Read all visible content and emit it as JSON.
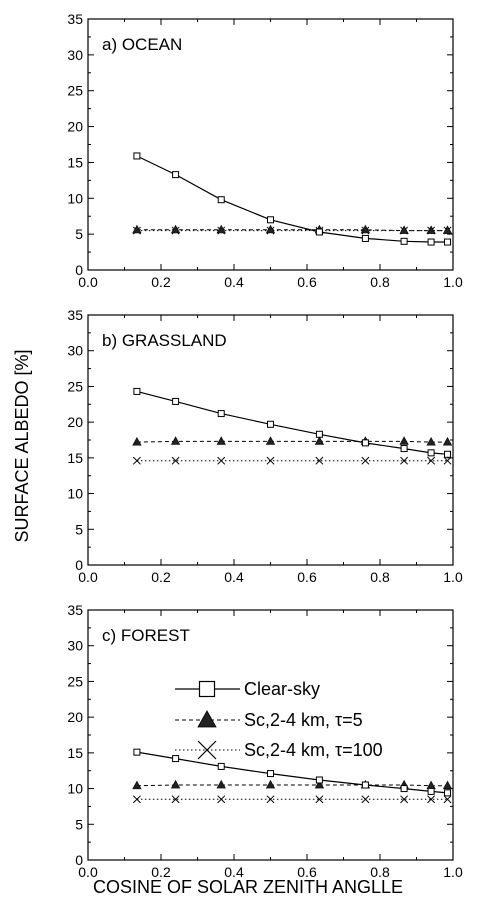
{
  "ylabel": "SURFACE ALBEDO [%]",
  "xlabel": "COSINE OF SOLAR ZENITH ANGLLE",
  "legend": [
    {
      "name": "Clear-sky",
      "marker": "open-square",
      "line": "solid"
    },
    {
      "name": "Sc,2-4 km, τ=5",
      "marker": "filled-triangle",
      "line": "dashed"
    },
    {
      "name": "Sc,2-4 km, τ=100",
      "marker": "cross",
      "line": "dotted"
    }
  ],
  "chart_data": [
    {
      "type": "line",
      "title": "a) OCEAN",
      "x": [
        0.134,
        0.24,
        0.365,
        0.5,
        0.634,
        0.76,
        0.866,
        0.94,
        0.985
      ],
      "xlim": [
        0.0,
        1.0
      ],
      "ylim": [
        0,
        35
      ],
      "xticks": [
        "0.0",
        "0.2",
        "0.4",
        "0.6",
        "0.8",
        "1.0"
      ],
      "yticks": [
        "0",
        "5",
        "10",
        "15",
        "20",
        "25",
        "30",
        "35"
      ],
      "series": [
        {
          "name": "Clear-sky",
          "values": [
            15.9,
            13.3,
            9.8,
            7.0,
            5.3,
            4.4,
            4.0,
            3.9,
            3.9
          ]
        },
        {
          "name": "Sc,2-4 km, τ=5",
          "values": [
            5.6,
            5.6,
            5.6,
            5.6,
            5.6,
            5.6,
            5.5,
            5.5,
            5.5
          ]
        },
        {
          "name": "Sc,2-4 km, τ=100",
          "values": [
            5.5,
            5.5,
            5.5,
            5.5,
            5.5,
            5.5,
            5.5,
            5.5,
            5.5
          ]
        }
      ]
    },
    {
      "type": "line",
      "title": "b) GRASSLAND",
      "x": [
        0.134,
        0.24,
        0.365,
        0.5,
        0.634,
        0.76,
        0.866,
        0.94,
        0.985
      ],
      "xlim": [
        0.0,
        1.0
      ],
      "ylim": [
        0,
        35
      ],
      "xticks": [
        "0.0",
        "0.2",
        "0.4",
        "0.6",
        "0.8",
        "1.0"
      ],
      "yticks": [
        "0",
        "5",
        "10",
        "15",
        "20",
        "25",
        "30",
        "35"
      ],
      "series": [
        {
          "name": "Clear-sky",
          "values": [
            24.3,
            22.9,
            21.2,
            19.7,
            18.3,
            17.1,
            16.3,
            15.7,
            15.5
          ]
        },
        {
          "name": "Sc,2-4 km, τ=5",
          "values": [
            17.2,
            17.3,
            17.3,
            17.3,
            17.3,
            17.3,
            17.3,
            17.2,
            17.2
          ]
        },
        {
          "name": "Sc,2-4 km, τ=100",
          "values": [
            14.6,
            14.6,
            14.6,
            14.6,
            14.6,
            14.6,
            14.6,
            14.6,
            14.6
          ]
        }
      ]
    },
    {
      "type": "line",
      "title": "c) FOREST",
      "x": [
        0.134,
        0.24,
        0.365,
        0.5,
        0.634,
        0.76,
        0.866,
        0.94,
        0.985
      ],
      "xlim": [
        0.0,
        1.0
      ],
      "ylim": [
        0,
        35
      ],
      "xticks": [
        "0.0",
        "0.2",
        "0.4",
        "0.6",
        "0.8",
        "1.0"
      ],
      "yticks": [
        "0",
        "5",
        "10",
        "15",
        "20",
        "25",
        "30",
        "35"
      ],
      "series": [
        {
          "name": "Clear-sky",
          "values": [
            15.1,
            14.2,
            13.1,
            12.1,
            11.2,
            10.5,
            10.0,
            9.6,
            9.4
          ]
        },
        {
          "name": "Sc,2-4 km, τ=5",
          "values": [
            10.4,
            10.5,
            10.5,
            10.5,
            10.5,
            10.5,
            10.5,
            10.4,
            10.4
          ]
        },
        {
          "name": "Sc,2-4 km, τ=100",
          "values": [
            8.5,
            8.5,
            8.5,
            8.5,
            8.5,
            8.5,
            8.5,
            8.5,
            8.5
          ]
        }
      ]
    }
  ]
}
